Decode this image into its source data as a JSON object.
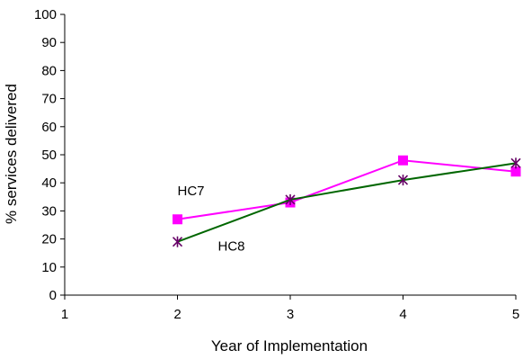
{
  "chart_data": {
    "type": "line",
    "xlabel": "Year of Implementation",
    "ylabel": "% services delivered",
    "xlim": [
      1,
      5
    ],
    "ylim": [
      0,
      100
    ],
    "xticks": [
      1,
      2,
      3,
      4,
      5
    ],
    "yticks": [
      0,
      10,
      20,
      30,
      40,
      50,
      60,
      70,
      80,
      90,
      100
    ],
    "grid": false,
    "legend": "none",
    "series": [
      {
        "name": "HC7",
        "x": [
          2,
          3,
          4,
          5
        ],
        "values": [
          27,
          33,
          48,
          44
        ],
        "color": "#ff00ff",
        "line_color": "#ff00ff",
        "marker": "square"
      },
      {
        "name": "HC8",
        "x": [
          2,
          3,
          4,
          5
        ],
        "values": [
          19,
          34,
          41,
          47
        ],
        "color": "#660066",
        "line_color": "#006600",
        "marker": "asterisk"
      }
    ]
  }
}
